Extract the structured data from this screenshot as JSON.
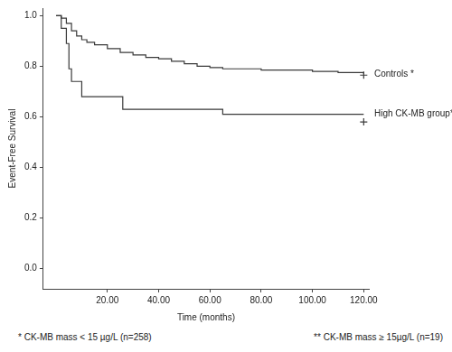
{
  "chart_data": {
    "type": "line",
    "x_label": "Time (months)",
    "y_label": "Event-Free Survival",
    "xlim": [
      -5,
      122
    ],
    "ylim": [
      -0.08,
      1.03
    ],
    "xticks": [
      {
        "value": 20,
        "label": "20.00"
      },
      {
        "value": 40,
        "label": "40.00"
      },
      {
        "value": 60,
        "label": "60.00"
      },
      {
        "value": 80,
        "label": "80.00"
      },
      {
        "value": 100,
        "label": "100.00"
      },
      {
        "value": 120,
        "label": "120.00"
      }
    ],
    "yticks": [
      {
        "value": 0,
        "label": "0.0"
      },
      {
        "value": 0.2,
        "label": "0.2"
      },
      {
        "value": 0.4,
        "label": "0.4"
      },
      {
        "value": 0.6,
        "label": "0.6"
      },
      {
        "value": 0.8,
        "label": "0.8"
      },
      {
        "value": 1,
        "label": "1.0"
      }
    ],
    "grid": false,
    "line_style": "step",
    "series": [
      {
        "name": "Controls *",
        "color": "#3a3a3a",
        "marker": "cross",
        "x": [
          0,
          2,
          4,
          6,
          8,
          10,
          12,
          15,
          20,
          25,
          30,
          35,
          40,
          45,
          50,
          55,
          60,
          65,
          80,
          100,
          110,
          120
        ],
        "values": [
          1.0,
          0.99,
          0.97,
          0.94,
          0.92,
          0.905,
          0.895,
          0.885,
          0.87,
          0.855,
          0.845,
          0.835,
          0.83,
          0.82,
          0.81,
          0.8,
          0.795,
          0.79,
          0.785,
          0.78,
          0.775,
          0.77
        ],
        "censored_x": [
          120
        ],
        "censored_values": [
          0.765
        ]
      },
      {
        "name": "High CK-MB group**",
        "color": "#3a3a3a",
        "marker": "cross",
        "x": [
          0,
          2,
          4,
          5,
          6,
          8,
          10,
          26,
          65,
          120
        ],
        "values": [
          1.0,
          0.95,
          0.89,
          0.79,
          0.74,
          0.74,
          0.68,
          0.63,
          0.61,
          0.61
        ],
        "censored_x": [
          120
        ],
        "censored_values": [
          0.58
        ]
      }
    ],
    "notes": [
      "* CK-MB mass < 15 µg/L (n=258)",
      "** CK-MB mass ≥ 15µg/L (n=19)"
    ]
  }
}
